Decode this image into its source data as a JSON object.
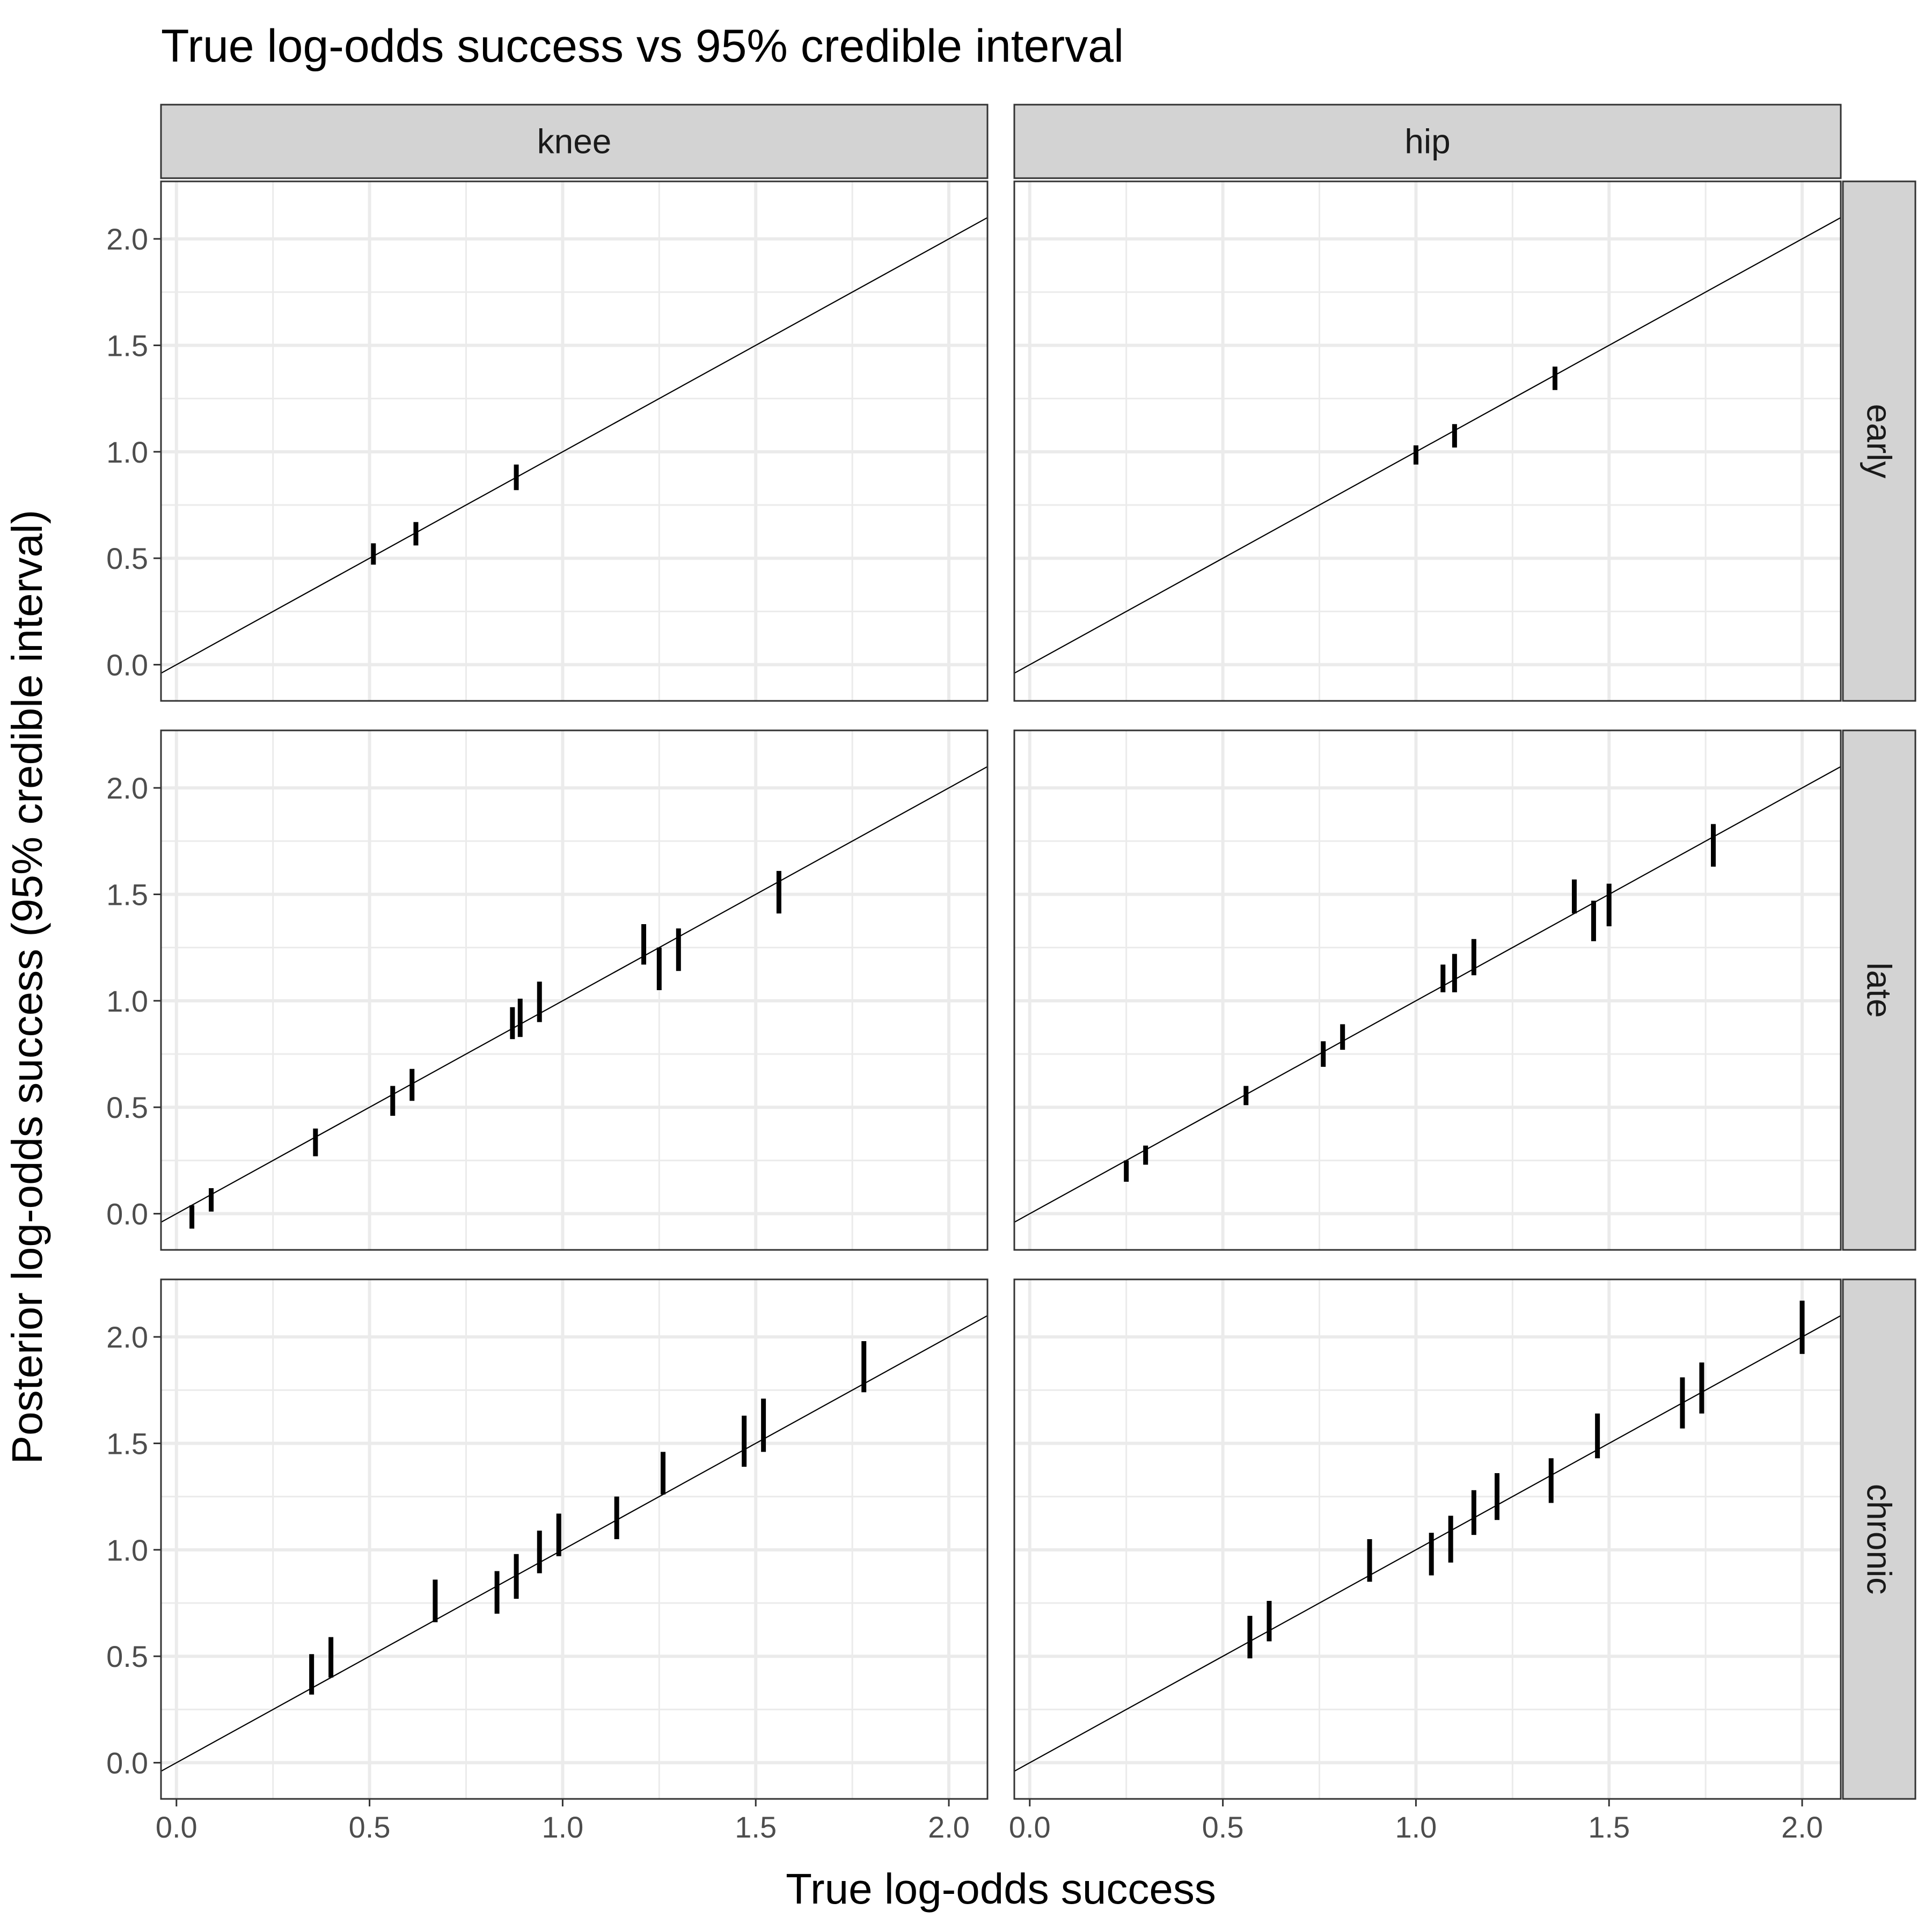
{
  "chart_data": {
    "type": "scatter",
    "title": "True log-odds success vs 95% credible interval",
    "xlabel": "True log-odds success",
    "ylabel": "Posterior log-odds success (95% credible interval)",
    "xlim": [
      -0.04,
      2.1
    ],
    "ylim": [
      -0.17,
      2.27
    ],
    "x_ticks": [
      "0.0",
      "0.5",
      "1.0",
      "1.5",
      "2.0"
    ],
    "y_ticks": [
      "0.0",
      "0.5",
      "1.0",
      "1.5",
      "2.0"
    ],
    "grid": true,
    "reference_line": "y = x",
    "columns": [
      "knee",
      "hip"
    ],
    "rows": [
      "early",
      "late",
      "chronic"
    ],
    "panels": [
      {
        "column": "knee",
        "row": "early",
        "intervals": [
          {
            "x": 0.51,
            "lo": 0.47,
            "hi": 0.57
          },
          {
            "x": 0.62,
            "lo": 0.56,
            "hi": 0.67
          },
          {
            "x": 0.88,
            "lo": 0.82,
            "hi": 0.94
          }
        ]
      },
      {
        "column": "hip",
        "row": "early",
        "intervals": [
          {
            "x": 1.0,
            "lo": 0.94,
            "hi": 1.03
          },
          {
            "x": 1.1,
            "lo": 1.02,
            "hi": 1.13
          },
          {
            "x": 1.36,
            "lo": 1.29,
            "hi": 1.4
          }
        ]
      },
      {
        "column": "knee",
        "row": "late",
        "intervals": [
          {
            "x": 0.04,
            "lo": -0.07,
            "hi": 0.04
          },
          {
            "x": 0.09,
            "lo": 0.01,
            "hi": 0.12
          },
          {
            "x": 0.36,
            "lo": 0.27,
            "hi": 0.4
          },
          {
            "x": 0.56,
            "lo": 0.46,
            "hi": 0.6
          },
          {
            "x": 0.61,
            "lo": 0.53,
            "hi": 0.68
          },
          {
            "x": 0.87,
            "lo": 0.82,
            "hi": 0.97
          },
          {
            "x": 0.89,
            "lo": 0.83,
            "hi": 1.01
          },
          {
            "x": 0.94,
            "lo": 0.9,
            "hi": 1.09
          },
          {
            "x": 1.21,
            "lo": 1.17,
            "hi": 1.36
          },
          {
            "x": 1.25,
            "lo": 1.05,
            "hi": 1.25
          },
          {
            "x": 1.3,
            "lo": 1.14,
            "hi": 1.34
          },
          {
            "x": 1.56,
            "lo": 1.41,
            "hi": 1.61
          }
        ]
      },
      {
        "column": "hip",
        "row": "late",
        "intervals": [
          {
            "x": 0.25,
            "lo": 0.15,
            "hi": 0.25
          },
          {
            "x": 0.3,
            "lo": 0.23,
            "hi": 0.32
          },
          {
            "x": 0.56,
            "lo": 0.51,
            "hi": 0.6
          },
          {
            "x": 0.76,
            "lo": 0.69,
            "hi": 0.81
          },
          {
            "x": 0.81,
            "lo": 0.77,
            "hi": 0.89
          },
          {
            "x": 1.07,
            "lo": 1.04,
            "hi": 1.17
          },
          {
            "x": 1.1,
            "lo": 1.04,
            "hi": 1.22
          },
          {
            "x": 1.15,
            "lo": 1.12,
            "hi": 1.29
          },
          {
            "x": 1.41,
            "lo": 1.41,
            "hi": 1.57
          },
          {
            "x": 1.46,
            "lo": 1.28,
            "hi": 1.47
          },
          {
            "x": 1.5,
            "lo": 1.35,
            "hi": 1.55
          },
          {
            "x": 1.77,
            "lo": 1.63,
            "hi": 1.83
          }
        ]
      },
      {
        "column": "knee",
        "row": "chronic",
        "intervals": [
          {
            "x": 0.35,
            "lo": 0.32,
            "hi": 0.51
          },
          {
            "x": 0.4,
            "lo": 0.4,
            "hi": 0.59
          },
          {
            "x": 0.67,
            "lo": 0.66,
            "hi": 0.86
          },
          {
            "x": 0.83,
            "lo": 0.7,
            "hi": 0.9
          },
          {
            "x": 0.88,
            "lo": 0.77,
            "hi": 0.98
          },
          {
            "x": 0.94,
            "lo": 0.89,
            "hi": 1.09
          },
          {
            "x": 0.99,
            "lo": 0.97,
            "hi": 1.17
          },
          {
            "x": 1.14,
            "lo": 1.05,
            "hi": 1.25
          },
          {
            "x": 1.26,
            "lo": 1.26,
            "hi": 1.46
          },
          {
            "x": 1.47,
            "lo": 1.39,
            "hi": 1.63
          },
          {
            "x": 1.52,
            "lo": 1.46,
            "hi": 1.71
          },
          {
            "x": 1.78,
            "lo": 1.74,
            "hi": 1.98
          }
        ]
      },
      {
        "column": "hip",
        "row": "chronic",
        "intervals": [
          {
            "x": 0.57,
            "lo": 0.49,
            "hi": 0.69
          },
          {
            "x": 0.62,
            "lo": 0.57,
            "hi": 0.76
          },
          {
            "x": 0.88,
            "lo": 0.85,
            "hi": 1.05
          },
          {
            "x": 1.04,
            "lo": 0.88,
            "hi": 1.08
          },
          {
            "x": 1.09,
            "lo": 0.94,
            "hi": 1.16
          },
          {
            "x": 1.15,
            "lo": 1.07,
            "hi": 1.28
          },
          {
            "x": 1.21,
            "lo": 1.14,
            "hi": 1.36
          },
          {
            "x": 1.35,
            "lo": 1.22,
            "hi": 1.43
          },
          {
            "x": 1.47,
            "lo": 1.43,
            "hi": 1.64
          },
          {
            "x": 1.69,
            "lo": 1.57,
            "hi": 1.81
          },
          {
            "x": 1.74,
            "lo": 1.64,
            "hi": 1.88
          },
          {
            "x": 2.0,
            "lo": 1.92,
            "hi": 2.17
          }
        ]
      }
    ]
  }
}
